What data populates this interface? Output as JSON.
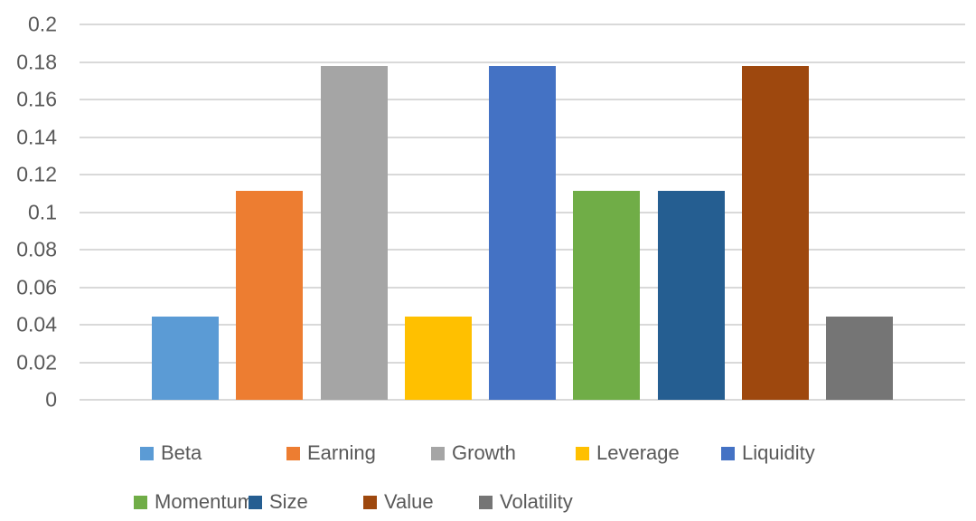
{
  "chart_data": {
    "type": "bar",
    "title": "",
    "xlabel": "",
    "ylabel": "",
    "categories": [
      "Beta",
      "Earning",
      "Growth",
      "Leverage",
      "Liquidity",
      "Momentum",
      "Size",
      "Value",
      "Volatility"
    ],
    "values": [
      0.0444,
      0.1111,
      0.1778,
      0.0444,
      0.1778,
      0.1111,
      0.1111,
      0.1778,
      0.0444
    ],
    "colors": [
      "#5B9BD5",
      "#ED7D31",
      "#A5A5A5",
      "#FFC000",
      "#4472C4",
      "#70AD47",
      "#255E91",
      "#9E480E",
      "#757575"
    ],
    "ylim": [
      0,
      0.2
    ],
    "ytick_interval": 0.02,
    "ytick_labels": [
      "0",
      "0.02",
      "0.04",
      "0.06",
      "0.08",
      "0.1",
      "0.12",
      "0.14",
      "0.16",
      "0.18",
      "0.2"
    ],
    "grid": true,
    "legend_position": "bottom",
    "legend_rows": [
      [
        "Beta",
        "Earning",
        "Growth",
        "Leverage",
        "Liquidity"
      ],
      [
        "Momentum",
        "Size",
        "Value",
        "Volatility"
      ]
    ]
  },
  "style": {
    "background_color": "#FFFFFF",
    "gridline_color": "#D9D9D9",
    "axis_text_color": "#595959",
    "legend_text_color": "#595959"
  }
}
